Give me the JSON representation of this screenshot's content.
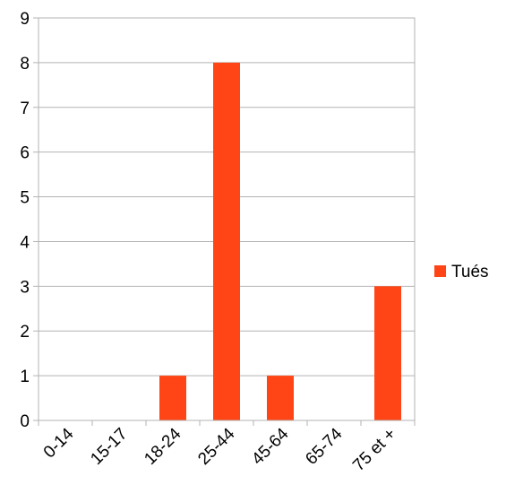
{
  "chart_data": {
    "type": "bar",
    "categories": [
      "0-14",
      "15-17",
      "18-24",
      "25-44",
      "45-64",
      "65-74",
      "75 et +"
    ],
    "series": [
      {
        "name": "Tués",
        "values": [
          0,
          0,
          1,
          8,
          1,
          0,
          3
        ],
        "color": "#ff4516"
      }
    ],
    "title": "",
    "xlabel": "",
    "ylabel": "",
    "ylim": [
      0,
      9
    ],
    "yticks": [
      0,
      1,
      2,
      3,
      4,
      5,
      6,
      7,
      8,
      9
    ],
    "grid": true,
    "legend": "right"
  }
}
